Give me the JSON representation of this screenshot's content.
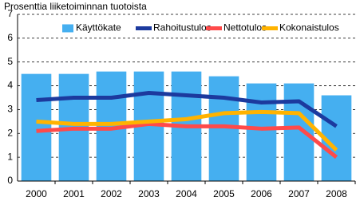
{
  "chart_data": {
    "type": "bar",
    "title": "Prosenttia liiketoiminnan tuotoista",
    "categories": [
      "2000",
      "2001",
      "2002",
      "2003",
      "2004",
      "2005",
      "2006",
      "2007",
      "2008"
    ],
    "series": [
      {
        "name": "Käyttökate",
        "type": "bar",
        "color": "#45aff0",
        "values": [
          4.5,
          4.5,
          4.6,
          4.6,
          4.6,
          4.4,
          4.1,
          4.1,
          3.6
        ]
      },
      {
        "name": "Rahoitustulos",
        "type": "line",
        "color": "#1c3a9e",
        "values": [
          3.4,
          3.5,
          3.5,
          3.7,
          3.6,
          3.5,
          3.3,
          3.35,
          2.3
        ]
      },
      {
        "name": "Nettotulos",
        "type": "line",
        "color": "#ff4a4a",
        "values": [
          2.1,
          2.2,
          2.2,
          2.4,
          2.3,
          2.3,
          2.2,
          2.25,
          1.0
        ]
      },
      {
        "name": "Kokonaistulos",
        "type": "line",
        "color": "#ffb300",
        "values": [
          2.5,
          2.4,
          2.4,
          2.5,
          2.6,
          2.85,
          2.9,
          2.85,
          1.3
        ]
      }
    ],
    "ylim": [
      0,
      7
    ],
    "yticks": [
      0,
      1,
      2,
      3,
      4,
      5,
      6,
      7
    ],
    "grid": true
  }
}
